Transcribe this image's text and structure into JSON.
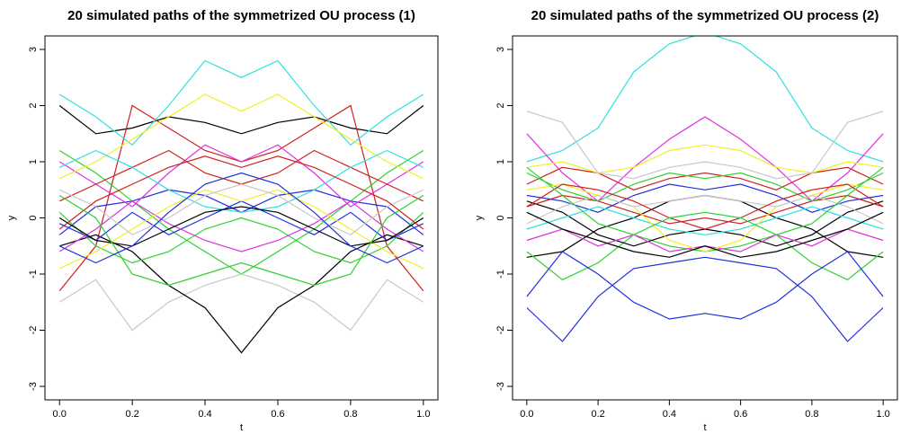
{
  "chart_data": [
    {
      "type": "line",
      "title": "20 simulated paths of the symmetrized OU process (1)",
      "xlabel": "t",
      "ylabel": "y",
      "x": [
        0,
        0.1,
        0.2,
        0.3,
        0.4,
        0.5,
        0.6,
        0.7,
        0.8,
        0.9,
        1
      ],
      "xlim": [
        -0.04,
        1.04
      ],
      "ylim": [
        -3.24,
        3.24
      ],
      "xticks": [
        {
          "value": 0,
          "label": "0.0"
        },
        0.2,
        0.4,
        0.6,
        0.8,
        {
          "value": 1,
          "label": "1.0"
        }
      ],
      "yticks": [
        -3,
        -2,
        -1,
        0,
        1,
        2,
        3
      ],
      "series": [
        {
          "color": "#000000",
          "values": [
            2.0,
            1.5,
            1.6,
            1.8,
            1.7,
            1.5,
            1.7,
            1.8,
            1.6,
            1.5,
            2.0
          ]
        },
        {
          "color": "#d02020",
          "values": [
            -1.3,
            -0.5,
            2.0,
            1.6,
            1.2,
            1.0,
            1.2,
            1.6,
            2.0,
            -0.5,
            -1.3
          ]
        },
        {
          "color": "#30d030",
          "values": [
            1.2,
            0.8,
            0.3,
            -0.2,
            -0.6,
            -1.0,
            -0.6,
            -0.2,
            0.3,
            0.8,
            1.2
          ]
        },
        {
          "color": "#2030e0",
          "values": [
            -0.3,
            0.2,
            0.3,
            0.5,
            0.4,
            0.1,
            0.4,
            0.5,
            0.3,
            0.2,
            -0.3
          ]
        },
        {
          "color": "#30e0e0",
          "values": [
            2.2,
            1.8,
            1.3,
            2.0,
            2.8,
            2.5,
            2.8,
            2.0,
            1.3,
            1.8,
            2.2
          ]
        },
        {
          "color": "#e030e0",
          "values": [
            1.0,
            0.6,
            0.2,
            0.8,
            1.3,
            1.0,
            1.3,
            0.8,
            0.2,
            0.6,
            1.0
          ]
        },
        {
          "color": "#f0f020",
          "values": [
            0.7,
            1.0,
            1.4,
            1.8,
            2.2,
            1.9,
            2.2,
            1.8,
            1.4,
            1.0,
            0.7
          ]
        },
        {
          "color": "#c8c8c8",
          "values": [
            -1.5,
            -1.1,
            -2.0,
            -1.5,
            -1.2,
            -1.0,
            -1.2,
            -1.5,
            -2.0,
            -1.1,
            -1.5
          ]
        },
        {
          "color": "#000000",
          "values": [
            -0.5,
            -0.3,
            -0.6,
            -1.2,
            -1.6,
            -2.4,
            -1.6,
            -1.2,
            -0.6,
            -0.3,
            -0.5
          ]
        },
        {
          "color": "#d02020",
          "values": [
            0.3,
            0.6,
            0.9,
            1.2,
            0.8,
            0.6,
            0.8,
            1.2,
            0.9,
            0.6,
            0.3
          ]
        },
        {
          "color": "#30d030",
          "values": [
            0.1,
            -0.5,
            -0.8,
            -0.6,
            -0.2,
            0.0,
            -0.2,
            -0.6,
            -0.8,
            -0.5,
            0.1
          ]
        },
        {
          "color": "#2030e0",
          "values": [
            -0.1,
            -0.4,
            0.1,
            -0.3,
            0.0,
            0.3,
            0.0,
            -0.3,
            0.1,
            -0.4,
            -0.1
          ]
        },
        {
          "color": "#30e0e0",
          "values": [
            0.9,
            1.2,
            0.9,
            0.5,
            0.2,
            0.1,
            0.2,
            0.5,
            0.9,
            1.2,
            0.9
          ]
        },
        {
          "color": "#e030e0",
          "values": [
            -0.6,
            -0.2,
            0.3,
            -0.1,
            -0.4,
            -0.6,
            -0.4,
            -0.1,
            0.3,
            -0.2,
            -0.6
          ]
        },
        {
          "color": "#f0f020",
          "values": [
            -0.9,
            -0.6,
            -0.2,
            0.2,
            0.5,
            0.3,
            0.5,
            0.2,
            -0.2,
            -0.6,
            -0.9
          ]
        },
        {
          "color": "#c8c8c8",
          "values": [
            0.5,
            0.2,
            -0.3,
            0.0,
            0.4,
            0.6,
            0.4,
            0.0,
            -0.3,
            0.2,
            0.5
          ]
        },
        {
          "color": "#000000",
          "values": [
            0.0,
            -0.4,
            -0.5,
            -0.2,
            0.1,
            0.2,
            0.1,
            -0.2,
            -0.5,
            -0.4,
            0.0
          ]
        },
        {
          "color": "#d02020",
          "values": [
            -0.2,
            0.3,
            0.6,
            0.9,
            1.1,
            0.9,
            1.1,
            0.9,
            0.6,
            0.3,
            -0.2
          ]
        },
        {
          "color": "#30d030",
          "values": [
            0.4,
            0.0,
            -1.0,
            -1.2,
            -1.0,
            -0.8,
            -1.0,
            -1.2,
            -1.0,
            0.0,
            0.4
          ]
        },
        {
          "color": "#2030e0",
          "values": [
            -0.5,
            -0.8,
            -0.5,
            0.1,
            0.6,
            0.8,
            0.6,
            0.1,
            -0.5,
            -0.8,
            -0.5
          ]
        }
      ]
    },
    {
      "type": "line",
      "title": "20 simulated paths of the symmetrized OU process (2)",
      "xlabel": "t",
      "ylabel": "y",
      "x": [
        0,
        0.1,
        0.2,
        0.3,
        0.4,
        0.5,
        0.6,
        0.7,
        0.8,
        0.9,
        1
      ],
      "xlim": [
        -0.04,
        1.04
      ],
      "ylim": [
        -3.24,
        3.24
      ],
      "xticks": [
        {
          "value": 0,
          "label": "0.0"
        },
        0.2,
        0.4,
        0.6,
        0.8,
        {
          "value": 1,
          "label": "1.0"
        }
      ],
      "yticks": [
        -3,
        -2,
        -1,
        0,
        1,
        2,
        3
      ],
      "series": [
        {
          "color": "#000000",
          "values": [
            -0.7,
            -0.6,
            -0.2,
            0.0,
            0.3,
            0.4,
            0.3,
            0.0,
            -0.2,
            -0.6,
            -0.7
          ]
        },
        {
          "color": "#d02020",
          "values": [
            0.6,
            0.9,
            0.8,
            0.5,
            0.7,
            0.8,
            0.7,
            0.5,
            0.8,
            0.9,
            0.6
          ]
        },
        {
          "color": "#30d030",
          "values": [
            -0.6,
            -1.1,
            -0.8,
            -0.3,
            -0.5,
            -0.6,
            -0.5,
            -0.3,
            -0.8,
            -1.1,
            -0.6
          ]
        },
        {
          "color": "#2030e0",
          "values": [
            -1.6,
            -2.2,
            -1.4,
            -0.9,
            -0.8,
            -0.7,
            -0.8,
            -0.9,
            -1.4,
            -2.2,
            -1.6
          ]
        },
        {
          "color": "#30e0e0",
          "values": [
            1.0,
            1.2,
            1.6,
            2.6,
            3.1,
            3.3,
            3.1,
            2.6,
            1.6,
            1.2,
            1.0
          ]
        },
        {
          "color": "#e030e0",
          "values": [
            1.5,
            0.8,
            0.3,
            0.9,
            1.4,
            1.8,
            1.4,
            0.9,
            0.3,
            0.8,
            1.5
          ]
        },
        {
          "color": "#f0f020",
          "values": [
            0.9,
            1.0,
            0.8,
            0.9,
            1.2,
            1.3,
            1.2,
            0.9,
            0.8,
            1.0,
            0.9
          ]
        },
        {
          "color": "#c8c8c8",
          "values": [
            1.9,
            1.7,
            0.8,
            0.7,
            0.9,
            1.0,
            0.9,
            0.7,
            0.8,
            1.7,
            1.9
          ]
        },
        {
          "color": "#000000",
          "values": [
            0.3,
            0.1,
            -0.3,
            -0.5,
            -0.3,
            -0.2,
            -0.3,
            -0.5,
            -0.3,
            0.1,
            0.3
          ]
        },
        {
          "color": "#d02020",
          "values": [
            0.2,
            0.4,
            0.3,
            0.1,
            -0.1,
            0.0,
            -0.1,
            0.1,
            0.3,
            0.4,
            0.2
          ]
        },
        {
          "color": "#30d030",
          "values": [
            0.8,
            0.5,
            0.3,
            0.6,
            0.8,
            0.7,
            0.8,
            0.6,
            0.3,
            0.5,
            0.8
          ]
        },
        {
          "color": "#2030e0",
          "values": [
            0.4,
            0.3,
            0.1,
            0.4,
            0.6,
            0.5,
            0.6,
            0.4,
            0.1,
            0.3,
            0.4
          ]
        },
        {
          "color": "#30e0e0",
          "values": [
            -0.2,
            0.0,
            0.2,
            0.0,
            -0.2,
            -0.3,
            -0.2,
            0.0,
            0.2,
            0.0,
            -0.2
          ]
        },
        {
          "color": "#e030e0",
          "values": [
            -0.4,
            -0.2,
            -0.5,
            -0.3,
            -0.6,
            -0.5,
            -0.6,
            -0.3,
            -0.5,
            -0.2,
            -0.4
          ]
        },
        {
          "color": "#f0f020",
          "values": [
            0.5,
            0.6,
            0.4,
            0.2,
            -0.4,
            -0.6,
            -0.4,
            0.2,
            0.4,
            0.6,
            0.5
          ]
        },
        {
          "color": "#c8c8c8",
          "values": [
            -0.1,
            0.2,
            0.4,
            0.2,
            0.3,
            0.4,
            0.3,
            0.2,
            0.4,
            0.2,
            -0.1
          ]
        },
        {
          "color": "#000000",
          "values": [
            0.1,
            -0.2,
            -0.4,
            -0.6,
            -0.7,
            -0.5,
            -0.7,
            -0.6,
            -0.4,
            -0.2,
            0.1
          ]
        },
        {
          "color": "#d02020",
          "values": [
            0.2,
            0.6,
            0.5,
            0.3,
            0.0,
            -0.2,
            0.0,
            0.3,
            0.5,
            0.6,
            0.2
          ]
        },
        {
          "color": "#30d030",
          "values": [
            0.9,
            0.4,
            -0.1,
            -0.3,
            0.0,
            0.1,
            0.0,
            -0.3,
            -0.1,
            0.4,
            0.9
          ]
        },
        {
          "color": "#2030e0",
          "values": [
            -1.4,
            -0.6,
            -1.0,
            -1.5,
            -1.8,
            -1.7,
            -1.8,
            -1.5,
            -1.0,
            -0.6,
            -1.4
          ]
        }
      ]
    }
  ]
}
